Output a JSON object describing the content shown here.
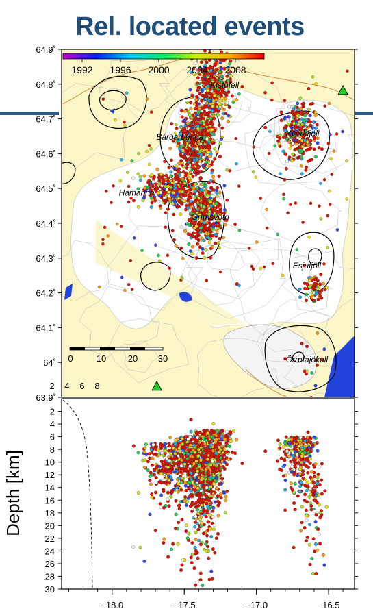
{
  "title": "Rel. located events",
  "colorbar": {
    "labels": [
      "1992",
      "1996",
      "2000",
      "2004",
      "2008"
    ],
    "years": [
      1992,
      1996,
      2000,
      2004,
      2008
    ],
    "range": [
      1990,
      2011
    ],
    "colors": [
      "#cc00cc",
      "#0022ff",
      "#00ccff",
      "#00ee66",
      "#ccee00",
      "#ffaa00",
      "#ee0000"
    ]
  },
  "colors": {
    "title": "#1f4e79",
    "land": "#fbf6c8",
    "water": "#2244dd",
    "volcano_marker": "#22cc22"
  },
  "chart_data": [
    {
      "type": "scatter",
      "panel": "map",
      "title": "",
      "xlim": [
        -18.35,
        -16.32
      ],
      "ylim": [
        63.9,
        64.9
      ],
      "yticks": [
        "64.9˚",
        "64.8˚",
        "64.7˚",
        "64.6˚",
        "64.5˚",
        "64.4˚",
        "64.3˚",
        "64.2˚",
        "64.1˚",
        "64˚",
        "63.9˚"
      ],
      "ytick_values": [
        64.9,
        64.8,
        64.7,
        64.6,
        64.5,
        64.4,
        64.3,
        64.2,
        64.1,
        64.0,
        63.9
      ],
      "scalebar": {
        "labels": [
          "0",
          "10",
          "20",
          "30"
        ],
        "unit_labels": [
          "2",
          "4",
          "6",
          "8"
        ]
      },
      "places": [
        {
          "name": "Kistufell",
          "lon": -17.22,
          "lat": 64.79
        },
        {
          "name": "Bárðarbunga",
          "lon": -17.53,
          "lat": 64.64
        },
        {
          "name": "Kverkfjöll",
          "lon": -16.68,
          "lat": 64.65
        },
        {
          "name": "Hamarinn",
          "lon": -17.83,
          "lat": 64.48
        },
        {
          "name": "Grímsvötn",
          "lon": -17.32,
          "lat": 64.41
        },
        {
          "name": "Esjufjöll",
          "lon": -16.65,
          "lat": 64.27
        },
        {
          "name": "Öræfajökull",
          "lon": -16.65,
          "lat": 64.0
        }
      ],
      "volcano_markers": [
        {
          "lon": -16.4,
          "lat": 64.78
        },
        {
          "lon": -17.69,
          "lat": 63.93
        }
      ],
      "event_clusters": [
        {
          "name": "Kistufell",
          "lon": -17.3,
          "lat": 64.79,
          "count": 420
        },
        {
          "name": "Bárðarbunga",
          "lon": -17.42,
          "lat": 64.64,
          "count": 720
        },
        {
          "name": "Hamarinn",
          "lon": -17.6,
          "lat": 64.5,
          "count": 360
        },
        {
          "name": "Grímsvötn",
          "lon": -17.36,
          "lat": 64.43,
          "count": 480
        },
        {
          "name": "Kverkfjöll",
          "lon": -16.7,
          "lat": 64.66,
          "count": 320
        },
        {
          "name": "Esjufjöll",
          "lon": -16.6,
          "lat": 64.21,
          "count": 70
        },
        {
          "name": "Öræfajökull",
          "lon": -16.64,
          "lat": 64.01,
          "count": 14
        }
      ]
    },
    {
      "type": "scatter",
      "panel": "depth",
      "ylabel": "Depth [km]",
      "xlim": [
        -18.35,
        -16.32
      ],
      "ylim": [
        0,
        30
      ],
      "xticks": [
        "−18.0",
        "−17.5",
        "−17.0",
        "−16.5"
      ],
      "xtick_values": [
        -18.0,
        -17.5,
        -17.0,
        -16.5
      ],
      "yticks": [
        "2",
        "4",
        "6",
        "8",
        "10",
        "12",
        "14",
        "16",
        "18",
        "20",
        "22",
        "24",
        "26",
        "28",
        "30"
      ],
      "ytick_values": [
        2,
        4,
        6,
        8,
        10,
        12,
        14,
        16,
        18,
        20,
        22,
        24,
        26,
        28,
        30
      ]
    }
  ]
}
